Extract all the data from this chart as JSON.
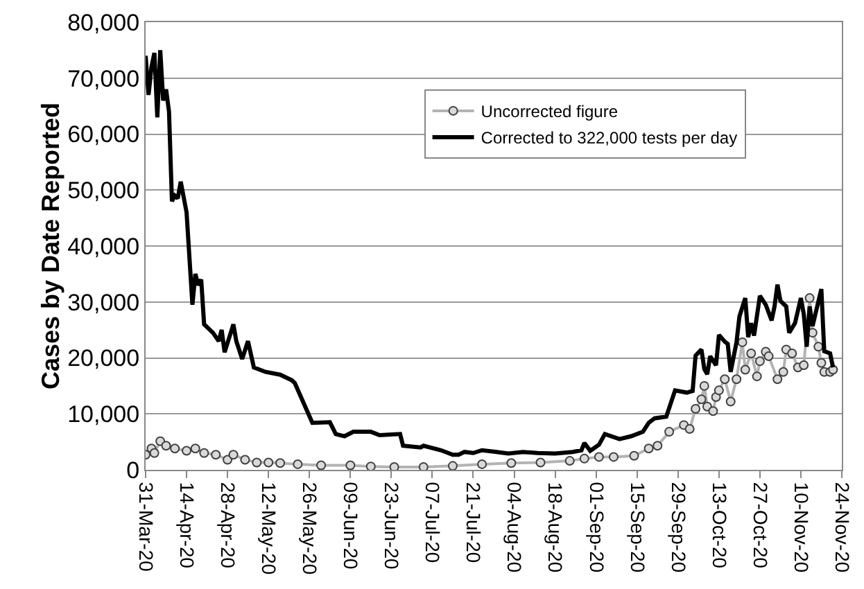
{
  "chart_data": {
    "type": "line",
    "ylabel": "Cases by Date Reported",
    "xlim": [
      "--03-31",
      "--11-24"
    ],
    "xticks": [
      {
        "value": "--03-31",
        "label": "31-Mar-20"
      },
      {
        "value": "--04-14",
        "label": "14-Apr-20"
      },
      {
        "value": "--04-28",
        "label": "28-Apr-20"
      },
      {
        "value": "--05-12",
        "label": "12-May-20"
      },
      {
        "value": "--05-26",
        "label": "26-May-20"
      },
      {
        "value": "--06-09",
        "label": "09-Jun-20"
      },
      {
        "value": "--06-23",
        "label": "23-Jun-20"
      },
      {
        "value": "--07-07",
        "label": "07-Jul-20"
      },
      {
        "value": "--07-21",
        "label": "21-Jul-20"
      },
      {
        "value": "--08-04",
        "label": "04-Aug-20"
      },
      {
        "value": "--08-18",
        "label": "18-Aug-20"
      },
      {
        "value": "--09-01",
        "label": "01-Sep-20"
      },
      {
        "value": "--09-15",
        "label": "15-Sep-20"
      },
      {
        "value": "--09-29",
        "label": "29-Sep-20"
      },
      {
        "value": "--10-13",
        "label": "13-Oct-20"
      },
      {
        "value": "--10-27",
        "label": "27-Oct-20"
      },
      {
        "value": "--11-10",
        "label": "10-Nov-20"
      },
      {
        "value": "--11-24",
        "label": "24-Nov-20"
      }
    ],
    "ylim": [
      0,
      80000
    ],
    "yticks": [
      {
        "value": 0,
        "label": "0"
      },
      {
        "value": 10000,
        "label": "10,000"
      },
      {
        "value": 20000,
        "label": "20,000"
      },
      {
        "value": 30000,
        "label": "30,000"
      },
      {
        "value": 40000,
        "label": "40,000"
      },
      {
        "value": 50000,
        "label": "50,000"
      },
      {
        "value": 60000,
        "label": "60,000"
      },
      {
        "value": 70000,
        "label": "70,000"
      },
      {
        "value": 80000,
        "label": "80,000"
      }
    ],
    "grid": "y",
    "legend": "top right",
    "series": [
      {
        "name": "Uncorrected figure",
        "color": "#b3b3b3",
        "marker": "circle",
        "x": [
          "--03-31",
          "--04-02",
          "--04-03",
          "--04-05",
          "--04-07",
          "--04-10",
          "--04-14",
          "--04-17",
          "--04-20",
          "--04-24",
          "--04-28",
          "--04-30",
          "--05-04",
          "--05-08",
          "--05-12",
          "--05-16",
          "--05-22",
          "--05-30",
          "--06-09",
          "--06-16",
          "--06-24",
          "--07-04",
          "--07-14",
          "--07-24",
          "--08-03",
          "--08-13",
          "--08-23",
          "--08-28",
          "--09-02",
          "--09-07",
          "--09-14",
          "--09-19",
          "--09-22",
          "--09-26",
          "--10-01",
          "--10-03",
          "--10-05",
          "--10-07",
          "--10-08",
          "--10-09",
          "--10-11",
          "--10-12",
          "--10-13",
          "--10-15",
          "--10-17",
          "--10-19",
          "--10-21",
          "--10-22",
          "--10-24",
          "--10-26",
          "--10-27",
          "--10-29",
          "--10-30",
          "--11-02",
          "--11-04",
          "--11-05",
          "--11-07",
          "--11-09",
          "--11-11",
          "--11-13",
          "--11-14",
          "--11-16",
          "--11-17",
          "--11-18",
          "--11-20",
          "--11-21"
        ],
        "values": [
          2700,
          3800,
          3000,
          5100,
          4300,
          3800,
          3400,
          3800,
          3000,
          2700,
          1800,
          2700,
          1800,
          1300,
          1300,
          1200,
          1000,
          800,
          800,
          600,
          500,
          500,
          700,
          1000,
          1200,
          1300,
          1600,
          2000,
          2300,
          2300,
          2500,
          3800,
          4300,
          6800,
          8000,
          7300,
          10900,
          12600,
          15000,
          11300,
          10500,
          13000,
          14200,
          16200,
          12200,
          16200,
          22800,
          17900,
          20800,
          16700,
          19400,
          21100,
          20300,
          16200,
          17500,
          21500,
          20800,
          18300,
          18700,
          30700,
          24500,
          22000,
          19100,
          17500,
          17500,
          17900
        ]
      },
      {
        "name": "Corrected to 322,000 tests per day",
        "color": "#000000",
        "marker": "none",
        "x": [
          "--03-31",
          "--04-01",
          "--04-02",
          "--04-03",
          "--04-04",
          "--04-05",
          "--04-06",
          "--04-07",
          "--04-08",
          "--04-09",
          "--04-10",
          "--04-11",
          "--04-12",
          "--04-14",
          "--04-16",
          "--04-17",
          "--04-18",
          "--04-19",
          "--04-20",
          "--04-23",
          "--04-25",
          "--04-26",
          "--04-27",
          "--04-30",
          "--05-01",
          "--05-03",
          "--05-05",
          "--05-07",
          "--05-11",
          "--05-16",
          "--05-20",
          "--05-21",
          "--05-27",
          "--06-02",
          "--06-04",
          "--06-07",
          "--06-10",
          "--06-16",
          "--06-19",
          "--06-26",
          "--06-27",
          "--07-03",
          "--07-04",
          "--07-10",
          "--07-14",
          "--07-16",
          "--07-18",
          "--07-21",
          "--07-24",
          "--07-29",
          "--08-02",
          "--08-07",
          "--08-12",
          "--08-18",
          "--08-24",
          "--08-27",
          "--08-28",
          "--08-30",
          "--09-02",
          "--09-04",
          "--09-09",
          "--09-13",
          "--09-17",
          "--09-19",
          "--09-21",
          "--09-25",
          "--09-28",
          "--09-30",
          "--10-02",
          "--10-04",
          "--10-05",
          "--10-07",
          "--10-08",
          "--10-09",
          "--10-10",
          "--10-12",
          "--10-13",
          "--10-15",
          "--10-16",
          "--10-17",
          "--10-19",
          "--10-20",
          "--10-22",
          "--10-23",
          "--10-24",
          "--10-25",
          "--10-27",
          "--10-29",
          "--10-31",
          "--11-01",
          "--11-02",
          "--11-03",
          "--11-05",
          "--11-06",
          "--11-08",
          "--11-10",
          "--11-11",
          "--11-12",
          "--11-13",
          "--11-14",
          "--11-17",
          "--11-18",
          "--11-20",
          "--11-21"
        ],
        "values": [
          74000,
          67000,
          72000,
          74500,
          63000,
          75000,
          66000,
          68000,
          64000,
          48000,
          49000,
          48500,
          51500,
          46000,
          29500,
          35000,
          33000,
          34000,
          26000,
          24500,
          23000,
          25000,
          21000,
          26000,
          23000,
          19800,
          23000,
          18300,
          17500,
          17000,
          16000,
          15500,
          8400,
          8500,
          6400,
          6000,
          6800,
          6800,
          6200,
          6400,
          4300,
          4000,
          4300,
          3500,
          2700,
          2700,
          3200,
          3000,
          3500,
          3200,
          2900,
          3200,
          3000,
          2900,
          3200,
          3500,
          4800,
          3400,
          4500,
          6400,
          5500,
          6000,
          6800,
          8400,
          9200,
          9500,
          14200,
          14000,
          13800,
          14100,
          20400,
          21500,
          18000,
          17100,
          20300,
          18700,
          24100,
          22900,
          22500,
          17500,
          22800,
          27400,
          30700,
          23700,
          26200,
          24000,
          31100,
          29500,
          26700,
          29200,
          33100,
          30200,
          29200,
          24500,
          26200,
          30700,
          27800,
          22000,
          29200,
          25700,
          32300,
          21200,
          20800,
          18300
        ]
      }
    ]
  }
}
